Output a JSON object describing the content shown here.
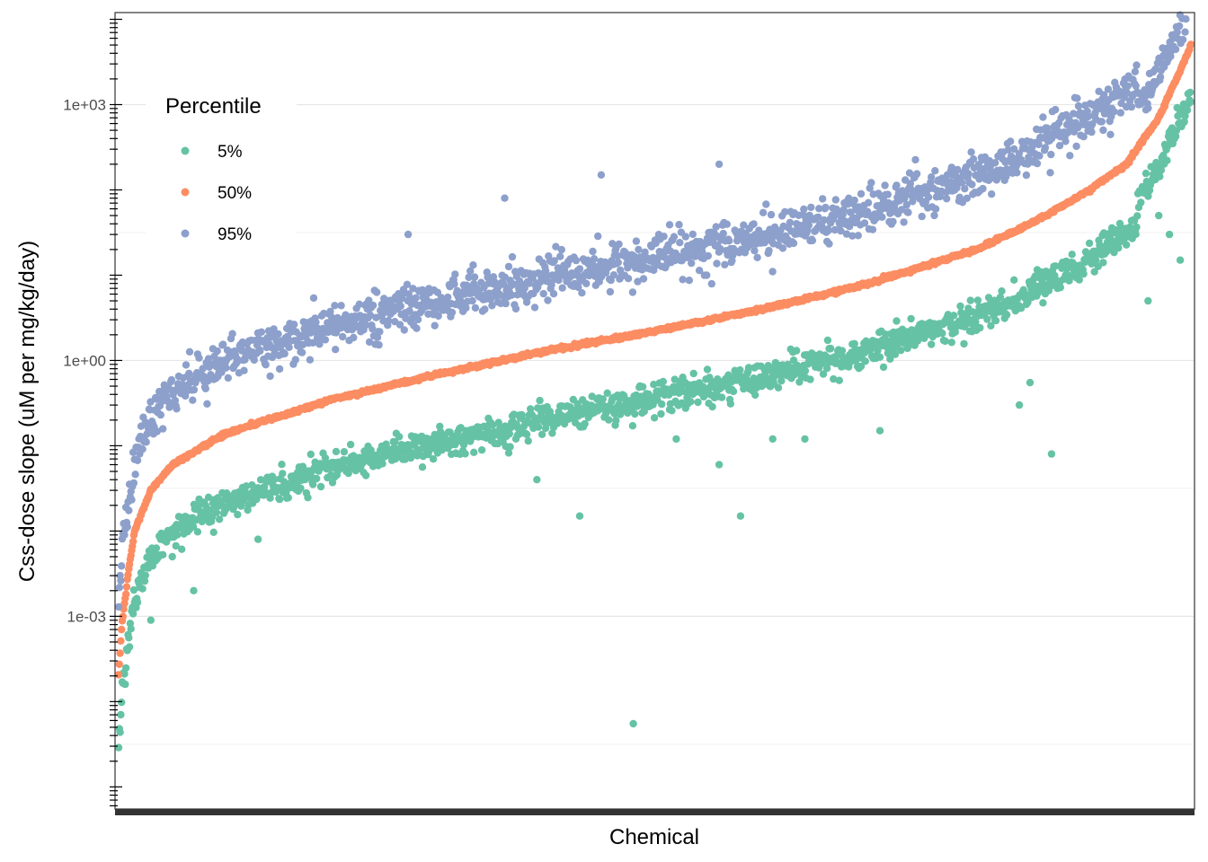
{
  "chart_data": {
    "type": "scatter",
    "title": "",
    "xlabel": "Chemical",
    "ylabel": "Css-dose slope (uM per mg/kg/day)",
    "y_scale": "log10",
    "ylim": [
      5.5e-06,
      12000
    ],
    "y_ticks": [
      0.001,
      1,
      1000
    ],
    "y_tick_labels": [
      "1e-03",
      "1e+00",
      "1e+03"
    ],
    "x_ticks": "one per chemical (unlabeled, ~1480 chemicals)",
    "grid": "horizontal major and minor lines",
    "legend": {
      "title": "Percentile",
      "placement": "top-left inside plot"
    },
    "series": [
      {
        "name": "5%",
        "color": "#66c2a5",
        "quantile": 0.05
      },
      {
        "name": "50%",
        "color": "#fc8d62",
        "quantile": 0.5
      },
      {
        "name": "95%",
        "color": "#8da0cb",
        "quantile": 0.95
      }
    ],
    "median_profile": {
      "description": "Median Css-dose slope vs. chemical rank (rank fraction 0-1)",
      "rank": [
        0,
        0.003,
        0.01,
        0.015,
        0.03,
        0.05,
        0.1,
        0.2,
        0.3,
        0.4,
        0.5,
        0.6,
        0.7,
        0.8,
        0.85,
        0.9,
        0.94,
        0.97,
        0.99,
        1.0
      ],
      "value": [
        0.0002,
        0.0008,
        0.004,
        0.01,
        0.03,
        0.06,
        0.14,
        0.35,
        0.7,
        1.3,
        2.2,
        4,
        8,
        20,
        40,
        90,
        200,
        700,
        2500,
        5000
      ]
    },
    "spread_log10": {
      "upper_95_offset": 0.85,
      "lower_5_offset": 0.75
    },
    "outliers_5pct": [
      {
        "rank": 0.03,
        "value": 0.0009
      },
      {
        "rank": 0.05,
        "value": 0.005
      },
      {
        "rank": 0.07,
        "value": 0.002
      },
      {
        "rank": 0.13,
        "value": 0.008
      },
      {
        "rank": 0.28,
        "value": 0.09
      },
      {
        "rank": 0.39,
        "value": 0.04
      },
      {
        "rank": 0.43,
        "value": 0.015
      },
      {
        "rank": 0.48,
        "value": 5.5e-05
      },
      {
        "rank": 0.52,
        "value": 0.12
      },
      {
        "rank": 0.56,
        "value": 0.06
      },
      {
        "rank": 0.58,
        "value": 0.015
      },
      {
        "rank": 0.61,
        "value": 0.12
      },
      {
        "rank": 0.64,
        "value": 0.12
      },
      {
        "rank": 0.71,
        "value": 0.15
      },
      {
        "rank": 0.84,
        "value": 0.3
      },
      {
        "rank": 0.85,
        "value": 0.55
      },
      {
        "rank": 0.87,
        "value": 0.08
      },
      {
        "rank": 0.96,
        "value": 5
      },
      {
        "rank": 0.97,
        "value": 50
      },
      {
        "rank": 0.98,
        "value": 30
      },
      {
        "rank": 0.99,
        "value": 15
      }
    ],
    "outliers_95pct": [
      {
        "rank": 0.36,
        "value": 80
      },
      {
        "rank": 0.45,
        "value": 150
      },
      {
        "rank": 0.56,
        "value": 200
      },
      {
        "rank": 0.27,
        "value": 30
      }
    ]
  }
}
